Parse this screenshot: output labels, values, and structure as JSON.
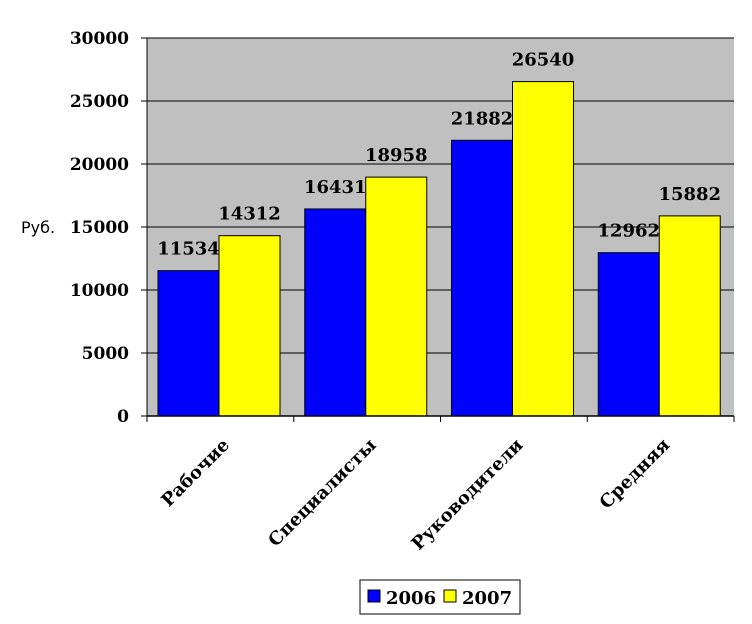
{
  "chart_data": {
    "type": "bar",
    "title": "",
    "xlabel": "",
    "ylabel": "Руб.",
    "ylim": [
      0,
      30000
    ],
    "yticks": [
      0,
      5000,
      10000,
      15000,
      20000,
      25000,
      30000
    ],
    "categories": [
      "Рабочие",
      "Специалисты",
      "Руководители",
      "Средняя"
    ],
    "series": [
      {
        "name": "2006",
        "values": [
          11534,
          16431,
          21882,
          12962
        ],
        "color": "#0000FF"
      },
      {
        "name": "2007",
        "values": [
          14312,
          18958,
          26540,
          15882
        ],
        "color": "#FFFF00"
      }
    ],
    "grid": true,
    "plot_background": "#C0C0C0",
    "legend_position": "bottom"
  }
}
